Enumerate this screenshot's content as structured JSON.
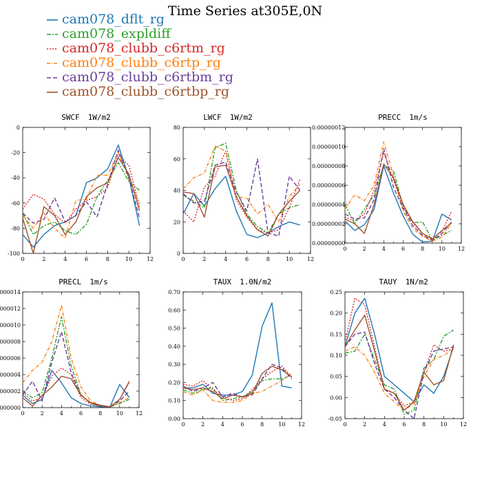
{
  "title": "Time Series at305E,0N",
  "legend": [
    {
      "label": "cam078_dflt_rg",
      "color": "#1f77b4",
      "dash": ""
    },
    {
      "label": "cam078_expldiff",
      "color": "#2ca02c",
      "dash": "6,2,2,2"
    },
    {
      "label": "cam078_clubb_c6rtm_rg",
      "color": "#d62728",
      "dash": "2,2"
    },
    {
      "label": "cam078_clubb_c6rtp_rg",
      "color": "#ff7f0e",
      "dash": "5,2,1,2"
    },
    {
      "label": "cam078_clubb_c6rtbm_rg",
      "color": "#6a3d9a",
      "dash": "6,3"
    },
    {
      "label": "cam078_clubb_c6rtbp_rg",
      "color": "#a0522d",
      "dash": ""
    }
  ],
  "chart_data": [
    {
      "type": "line",
      "title": "SWCF",
      "unit": "1W/m2",
      "x": [
        0,
        1,
        2,
        3,
        4,
        5,
        6,
        7,
        8,
        9,
        10,
        11
      ],
      "ylim": [
        -100,
        0
      ],
      "xlim": [
        0,
        12
      ],
      "xticks": [
        "0",
        "2",
        "4",
        "6",
        "8",
        "10",
        "12"
      ],
      "yticks": [
        "-100",
        "-80",
        "-60",
        "-40",
        "-20",
        "0"
      ],
      "series": [
        {
          "name": "cam078_dflt_rg",
          "values": [
            -85,
            -95,
            -85,
            -78,
            -75,
            -70,
            -44,
            -40,
            -33,
            -14,
            -40,
            -78
          ]
        },
        {
          "name": "cam078_expldiff",
          "values": [
            -68,
            -85,
            -78,
            -75,
            -82,
            -85,
            -77,
            -55,
            -42,
            -28,
            -43,
            -50
          ]
        },
        {
          "name": "cam078_clubb_c6rtm_rg",
          "values": [
            -65,
            -53,
            -57,
            -69,
            -76,
            -65,
            -58,
            -55,
            -48,
            -22,
            -30,
            -63
          ]
        },
        {
          "name": "cam078_clubb_c6rtp_rg",
          "values": [
            -70,
            -80,
            -68,
            -80,
            -88,
            -58,
            -57,
            -38,
            -38,
            -20,
            -41,
            -60
          ]
        },
        {
          "name": "cam078_clubb_c6rtbm_rg",
          "values": [
            -68,
            -76,
            -73,
            -56,
            -75,
            -70,
            -59,
            -71,
            -45,
            -18,
            -40,
            -72
          ]
        },
        {
          "name": "cam078_clubb_c6rtbp_rg",
          "values": [
            -72,
            -100,
            -63,
            -70,
            -85,
            -75,
            -55,
            -48,
            -44,
            -24,
            -37,
            -66
          ]
        }
      ]
    },
    {
      "type": "line",
      "title": "LWCF",
      "unit": "1W/m2",
      "x": [
        0,
        1,
        2,
        3,
        4,
        5,
        6,
        7,
        8,
        9,
        10,
        11
      ],
      "ylim": [
        0,
        80
      ],
      "xlim": [
        0,
        12
      ],
      "xticks": [
        "0",
        "2",
        "4",
        "6",
        "8",
        "10",
        "12"
      ],
      "yticks": [
        "0",
        "20",
        "40",
        "60",
        "80"
      ],
      "series": [
        {
          "name": "cam078_dflt_rg",
          "values": [
            25,
            38,
            30,
            41,
            49,
            27,
            12,
            10,
            13,
            17,
            20,
            18
          ]
        },
        {
          "name": "cam078_expldiff",
          "values": [
            37,
            33,
            29,
            67,
            70,
            40,
            25,
            17,
            13,
            25,
            29,
            31
          ]
        },
        {
          "name": "cam078_clubb_c6rtm_rg",
          "values": [
            27,
            20,
            42,
            49,
            65,
            34,
            23,
            15,
            13,
            15,
            29,
            47
          ]
        },
        {
          "name": "cam078_clubb_c6rtp_rg",
          "values": [
            41,
            48,
            51,
            68,
            65,
            36,
            35,
            25,
            31,
            20,
            36,
            44
          ]
        },
        {
          "name": "cam078_clubb_c6rtbm_rg",
          "values": [
            38,
            32,
            33,
            56,
            58,
            39,
            27,
            60,
            13,
            11,
            49,
            40
          ]
        },
        {
          "name": "cam078_clubb_c6rtbp_rg",
          "values": [
            39,
            38,
            23,
            55,
            56,
            36,
            24,
            15,
            11,
            25,
            33,
            40
          ]
        }
      ]
    },
    {
      "type": "line",
      "title": "PRECC",
      "unit": "1m/s",
      "x": [
        0,
        1,
        2,
        3,
        4,
        5,
        6,
        7,
        8,
        9,
        10,
        11
      ],
      "ylim": [
        0,
        1.2e-07
      ],
      "xlim": [
        0,
        12
      ],
      "xticks": [
        "0",
        "2",
        "4",
        "6",
        "8",
        "10",
        "12"
      ],
      "yticks": [
        "0.00000000",
        "0.00000002",
        "0.00000004",
        "0.00000006",
        "0.00000008",
        "0.00000010",
        "0.00000012"
      ],
      "series": [
        {
          "name": "cam078_dflt_rg",
          "values": [
            2.3e-08,
            1.3e-08,
            1.9e-08,
            3.5e-08,
            8e-08,
            5.2e-08,
            2.8e-08,
            9e-09,
            1e-09,
            2e-09,
            3e-08,
            2.4e-08
          ]
        },
        {
          "name": "cam078_expldiff",
          "values": [
            4e-08,
            2e-08,
            3.5e-08,
            5e-08,
            8.1e-08,
            7.5e-08,
            3.8e-08,
            2.1e-08,
            2.2e-08,
            3e-09,
            8e-09,
            1.3e-08
          ]
        },
        {
          "name": "cam078_clubb_c6rtm_rg",
          "values": [
            2.7e-08,
            2.3e-08,
            3e-08,
            5.5e-08,
            9.4e-08,
            6.5e-08,
            3.8e-08,
            2.1e-08,
            1e-08,
            5e-09,
            1.2e-08,
            3.3e-08
          ]
        },
        {
          "name": "cam078_clubb_c6rtp_rg",
          "values": [
            3.5e-08,
            5e-08,
            4.4e-08,
            6e-08,
            1.05e-07,
            7e-08,
            3.3e-08,
            1.5e-08,
            7e-09,
            2e-09,
            6e-09,
            2.1e-08
          ]
        },
        {
          "name": "cam078_clubb_c6rtbm_rg",
          "values": [
            3e-08,
            2.5e-08,
            2.6e-08,
            4.5e-08,
            9.8e-08,
            5.8e-08,
            3.6e-08,
            1.8e-08,
            8e-09,
            3e-09,
            1e-08,
            2.2e-08
          ]
        },
        {
          "name": "cam078_clubb_c6rtbp_rg",
          "values": [
            2.5e-08,
            2e-08,
            1e-08,
            4e-08,
            8.2e-08,
            6.8e-08,
            4e-08,
            2.2e-08,
            1e-08,
            4e-09,
            1.3e-08,
            2.1e-08
          ]
        }
      ]
    },
    {
      "type": "line",
      "title": "PRECL",
      "unit": "1m/s",
      "x": [
        0,
        1,
        2,
        3,
        4,
        5,
        6,
        7,
        8,
        9,
        10,
        11
      ],
      "ylim": [
        0,
        1.4e-07
      ],
      "xlim": [
        0,
        12
      ],
      "xticks": [
        "0",
        "2",
        "4",
        "6",
        "8",
        "10",
        "12"
      ],
      "yticks": [
        "0.00000000",
        "00000002",
        "00000004",
        "00000006",
        "00000008",
        "00000010",
        "00000012",
        "00000014"
      ],
      "series": [
        {
          "name": "cam078_dflt_rg",
          "values": [
            1.5e-08,
            5e-09,
            1e-08,
            4.5e-08,
            3e-08,
            1.2e-08,
            5e-09,
            2e-09,
            1e-09,
            1e-09,
            2.8e-08,
            1.2e-08
          ]
        },
        {
          "name": "cam078_expldiff",
          "values": [
            2e-08,
            1.2e-08,
            1.8e-08,
            6e-08,
            1.1e-07,
            5e-08,
            1.6e-08,
            5e-09,
            2e-09,
            1e-09,
            5e-09,
            1e-08
          ]
        },
        {
          "name": "cam078_clubb_c6rtm_rg",
          "values": [
            1.8e-08,
            8e-09,
            1.2e-08,
            3.8e-08,
            4.8e-08,
            4e-08,
            1.2e-08,
            4e-09,
            2e-09,
            1e-09,
            1e-08,
            3.1e-08
          ]
        },
        {
          "name": "cam078_clubb_c6rtp_rg",
          "values": [
            3e-08,
            4.5e-08,
            5.5e-08,
            8e-08,
            1.24e-07,
            6e-08,
            2.5e-08,
            8e-09,
            3e-09,
            1e-09,
            6e-09,
            1.2e-08
          ]
        },
        {
          "name": "cam078_clubb_c6rtbm_rg",
          "values": [
            1.5e-08,
            3.2e-08,
            8e-09,
            5.5e-08,
            9.2e-08,
            4.2e-08,
            1.5e-08,
            6e-09,
            2e-09,
            1e-09,
            8e-09,
            2e-08
          ]
        },
        {
          "name": "cam078_clubb_c6rtbp_rg",
          "values": [
            1.2e-08,
            2e-09,
            1.5e-08,
            2.5e-08,
            3.8e-08,
            3.5e-08,
            1.5e-08,
            6e-09,
            3e-09,
            1e-09,
            1e-08,
            3.2e-08
          ]
        }
      ]
    },
    {
      "type": "line",
      "title": "TAUX",
      "unit": "1.0N/m2",
      "x": [
        0,
        1,
        2,
        3,
        4,
        5,
        6,
        7,
        8,
        9,
        10,
        11
      ],
      "ylim": [
        0,
        0.7
      ],
      "xlim": [
        0,
        12
      ],
      "xticks": [
        "0",
        "2",
        "4",
        "6",
        "8",
        "10",
        "12"
      ],
      "yticks": [
        "0.00",
        "0.10",
        "0.20",
        "0.30",
        "0.40",
        "0.50",
        "0.60",
        "0.70"
      ],
      "series": [
        {
          "name": "cam078_dflt_rg",
          "values": [
            0.17,
            0.17,
            0.19,
            0.14,
            0.13,
            0.13,
            0.15,
            0.24,
            0.51,
            0.64,
            0.18,
            0.17
          ]
        },
        {
          "name": "cam078_expldiff",
          "values": [
            0.16,
            0.14,
            0.16,
            0.17,
            0.1,
            0.11,
            0.12,
            0.15,
            0.21,
            0.22,
            0.22,
            0.24
          ]
        },
        {
          "name": "cam078_clubb_c6rtm_rg",
          "values": [
            0.19,
            0.18,
            0.21,
            0.16,
            0.12,
            0.1,
            0.11,
            0.16,
            0.22,
            0.26,
            0.29,
            0.23
          ]
        },
        {
          "name": "cam078_clubb_c6rtp_rg",
          "values": [
            0.15,
            0.13,
            0.16,
            0.1,
            0.09,
            0.09,
            0.1,
            0.14,
            0.15,
            0.18,
            0.21,
            0.25
          ]
        },
        {
          "name": "cam078_clubb_c6rtbm_rg",
          "values": [
            0.18,
            0.15,
            0.17,
            0.2,
            0.12,
            0.14,
            0.12,
            0.13,
            0.22,
            0.3,
            0.28,
            0.22
          ]
        },
        {
          "name": "cam078_clubb_c6rtbp_rg",
          "values": [
            0.17,
            0.16,
            0.17,
            0.15,
            0.11,
            0.13,
            0.12,
            0.14,
            0.25,
            0.29,
            0.27,
            0.23
          ]
        }
      ]
    },
    {
      "type": "line",
      "title": "TAUY",
      "unit": "1N/m2",
      "x": [
        0,
        1,
        2,
        3,
        4,
        5,
        6,
        7,
        8,
        9,
        10,
        11
      ],
      "ylim": [
        -0.05,
        0.25
      ],
      "xlim": [
        0,
        12
      ],
      "xticks": [
        "0",
        "2",
        "4",
        "6",
        "8",
        "10",
        "12"
      ],
      "yticks": [
        "-0.05",
        "0.00",
        "0.05",
        "0.10",
        "0.15",
        "0.20",
        "0.25"
      ],
      "series": [
        {
          "name": "cam078_dflt_rg",
          "values": [
            0.12,
            0.2,
            0.235,
            0.15,
            0.05,
            0.03,
            0.01,
            -0.01,
            0.03,
            0.01,
            0.05,
            0.12
          ]
        },
        {
          "name": "cam078_expldiff",
          "values": [
            0.105,
            0.11,
            0.15,
            0.09,
            0.03,
            0.02,
            -0.04,
            -0.03,
            0.07,
            0.09,
            0.145,
            0.16
          ]
        },
        {
          "name": "cam078_clubb_c6rtm_rg",
          "values": [
            0.13,
            0.235,
            0.22,
            0.12,
            0.02,
            0.01,
            -0.02,
            -0.01,
            0.06,
            0.125,
            0.11,
            0.115
          ]
        },
        {
          "name": "cam078_clubb_c6rtp_rg",
          "values": [
            0.11,
            0.12,
            0.1,
            0.06,
            0.01,
            -0.01,
            -0.03,
            -0.015,
            0.05,
            0.09,
            0.1,
            0.115
          ]
        },
        {
          "name": "cam078_clubb_c6rtbm_rg",
          "values": [
            0.12,
            0.15,
            0.155,
            0.08,
            0.02,
            0.0,
            -0.03,
            -0.05,
            0.06,
            0.11,
            0.115,
            0.12
          ]
        },
        {
          "name": "cam078_clubb_c6rtbp_rg",
          "values": [
            0.12,
            0.16,
            0.195,
            0.11,
            0.02,
            0.01,
            -0.03,
            -0.01,
            0.06,
            0.03,
            0.04,
            0.125
          ]
        }
      ]
    }
  ]
}
